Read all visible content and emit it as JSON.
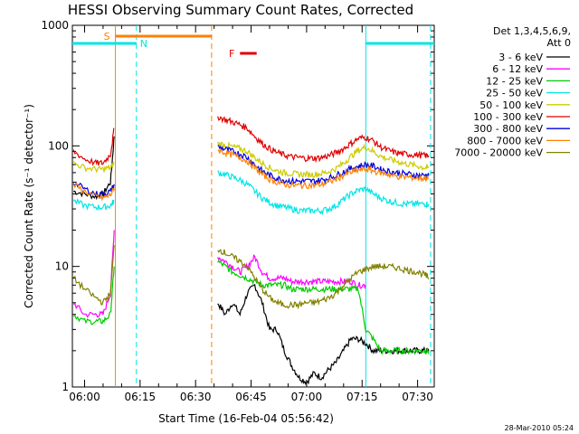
{
  "chart_data": {
    "type": "line",
    "title": "HESSI Observing Summary Count Rates, Corrected",
    "xlabel": "Start Time (16-Feb-04 05:56:42)",
    "ylabel": "Corrected Count Rate (s⁻¹ detector⁻¹)",
    "y_scale": "log",
    "ylim": [
      1,
      1000
    ],
    "xlim": [
      "05:56:42",
      "07:34:30"
    ],
    "x_ticks": [
      "06:00",
      "06:15",
      "06:30",
      "06:45",
      "07:00",
      "07:15",
      "07:30"
    ],
    "y_ticks": [
      "1",
      "10",
      "100",
      "1000"
    ],
    "legend_header": [
      "Det 1,3,4,5,6,9,",
      "Att 0"
    ],
    "legend_position": "right",
    "footer": "28-Mar-2010 05:24",
    "flag_bars": [
      {
        "label": "S",
        "color": "#ff8000",
        "start": "06:08:20",
        "end": "06:34:20"
      },
      {
        "label": "N",
        "color": "#00e5e5",
        "start": "05:56:42",
        "end": "06:14:00"
      },
      {
        "label": "N",
        "color": "#00e5e5",
        "start": "07:16:00",
        "end": "07:34:30"
      },
      {
        "label": "F",
        "color": "#e00000",
        "start": "06:42:00",
        "end": "06:46:30"
      }
    ],
    "vertical_lines": [
      {
        "time": "06:08:20",
        "color": "#ff8000",
        "style": "solid"
      },
      {
        "time": "06:14:00",
        "color": "#00e5e5",
        "style": "dashed"
      },
      {
        "time": "06:34:20",
        "color": "#ff8000",
        "style": "dashed"
      },
      {
        "time": "07:16:00",
        "color": "#00e5e5",
        "style": "solid"
      },
      {
        "time": "07:33:30",
        "color": "#00e5e5",
        "style": "dashed"
      }
    ],
    "series": [
      {
        "name": "3 - 6 keV",
        "color": "#000000",
        "segments": [
          {
            "x": [
              "05:57",
              "06:00",
              "06:03",
              "06:05",
              "06:07",
              "06:08"
            ],
            "y": [
              42,
              40,
              38,
              40,
              50,
              120
            ]
          },
          {
            "x": [
              "06:36",
              "06:38",
              "06:40",
              "06:42",
              "06:44",
              "06:46",
              "06:48",
              "06:50",
              "06:52",
              "06:54",
              "06:56",
              "06:58",
              "07:00",
              "07:02",
              "07:04",
              "07:06",
              "07:08",
              "07:10",
              "07:12",
              "07:14",
              "07:16",
              "07:18",
              "07:20",
              "07:22",
              "07:24",
              "07:26",
              "07:28",
              "07:30",
              "07:32",
              "07:33"
            ],
            "y": [
              5,
              4,
              5,
              4,
              6,
              7,
              5,
              3,
              3,
              2,
              1.5,
              1.2,
              1.1,
              1.3,
              1.2,
              1.4,
              1.6,
              2,
              2.5,
              2.5,
              2.3,
              2,
              2,
              2,
              2,
              2,
              2,
              2,
              2,
              2
            ]
          }
        ]
      },
      {
        "name": "6 - 12 keV",
        "color": "#ff00ff",
        "segments": [
          {
            "x": [
              "05:57",
              "06:00",
              "06:03",
              "06:05",
              "06:07",
              "06:08"
            ],
            "y": [
              5,
              4,
              4,
              4,
              6,
              20
            ]
          },
          {
            "x": [
              "06:36",
              "06:38",
              "06:40",
              "06:42",
              "06:44",
              "06:46",
              "06:48",
              "06:50",
              "06:52",
              "06:54",
              "06:56",
              "06:58",
              "07:00",
              "07:02",
              "07:04",
              "07:06",
              "07:08",
              "07:10",
              "07:12",
              "07:14",
              "07:16"
            ],
            "y": [
              12,
              11,
              10,
              9,
              10,
              12,
              9,
              8,
              8,
              8,
              7.5,
              7.5,
              7.5,
              7.5,
              7.5,
              7.5,
              7.5,
              7.5,
              7.5,
              7,
              7
            ]
          }
        ]
      },
      {
        "name": "12 - 25 keV",
        "color": "#00cc00",
        "segments": [
          {
            "x": [
              "05:57",
              "06:00",
              "06:03",
              "06:05",
              "06:07",
              "06:08"
            ],
            "y": [
              4,
              3.5,
              3.5,
              3.5,
              4,
              10
            ]
          },
          {
            "x": [
              "06:36",
              "06:38",
              "06:40",
              "06:42",
              "06:44",
              "06:46",
              "06:48",
              "06:50",
              "06:52",
              "06:54",
              "06:56",
              "06:58",
              "07:00",
              "07:02",
              "07:04",
              "07:06",
              "07:08",
              "07:10",
              "07:12",
              "07:14",
              "07:16",
              "07:18",
              "07:20",
              "07:22",
              "07:24",
              "07:26",
              "07:28",
              "07:30",
              "07:32",
              "07:33"
            ],
            "y": [
              11,
              10,
              9,
              8.5,
              8,
              7.5,
              7,
              7,
              7,
              7,
              6.5,
              6.5,
              6.5,
              6.5,
              6.5,
              6.5,
              6.5,
              6.5,
              6.5,
              6.5,
              3,
              2.5,
              2,
              2,
              2,
              2,
              2,
              2,
              2,
              2
            ]
          }
        ]
      },
      {
        "name": "25 - 50 keV",
        "color": "#00e5e5",
        "segments": [
          {
            "x": [
              "05:57",
              "06:00",
              "06:03",
              "06:05",
              "06:07",
              "06:08"
            ],
            "y": [
              35,
              32,
              31,
              31,
              32,
              35
            ]
          },
          {
            "x": [
              "06:36",
              "06:38",
              "06:40",
              "06:42",
              "06:44",
              "06:46",
              "06:48",
              "06:50",
              "06:52",
              "06:54",
              "06:56",
              "06:58",
              "07:00",
              "07:02",
              "07:04",
              "07:06",
              "07:08",
              "07:10",
              "07:12",
              "07:14",
              "07:16",
              "07:18",
              "07:20",
              "07:22",
              "07:24",
              "07:26",
              "07:28",
              "07:30",
              "07:32",
              "07:33"
            ],
            "y": [
              60,
              58,
              55,
              52,
              48,
              42,
              37,
              34,
              32,
              31,
              30,
              29,
              29,
              29,
              29,
              30,
              32,
              36,
              40,
              43,
              44,
              40,
              37,
              35,
              34,
              33,
              33,
              33,
              33,
              33
            ]
          }
        ]
      },
      {
        "name": "50 - 100 keV",
        "color": "#cccc00",
        "segments": [
          {
            "x": [
              "05:57",
              "06:00",
              "06:03",
              "06:05",
              "06:07",
              "06:08"
            ],
            "y": [
              72,
              66,
              64,
              64,
              66,
              72
            ]
          },
          {
            "x": [
              "06:36",
              "06:38",
              "06:40",
              "06:42",
              "06:44",
              "06:46",
              "06:48",
              "06:50",
              "06:52",
              "06:54",
              "06:56",
              "06:58",
              "07:00",
              "07:02",
              "07:04",
              "07:06",
              "07:08",
              "07:10",
              "07:12",
              "07:14",
              "07:16",
              "07:18",
              "07:20",
              "07:22",
              "07:24",
              "07:26",
              "07:28",
              "07:30",
              "07:32",
              "07:33"
            ],
            "y": [
              105,
              102,
              98,
              95,
              90,
              80,
              72,
              66,
              62,
              60,
              59,
              58,
              58,
              58,
              59,
              61,
              65,
              72,
              82,
              92,
              98,
              90,
              82,
              78,
              75,
              72,
              70,
              68,
              66,
              66
            ]
          }
        ]
      },
      {
        "name": "100 - 300 keV",
        "color": "#e00000",
        "segments": [
          {
            "x": [
              "05:57",
              "06:00",
              "06:03",
              "06:05",
              "06:07",
              "06:08"
            ],
            "y": [
              90,
              78,
              72,
              72,
              85,
              140
            ]
          },
          {
            "x": [
              "06:36",
              "06:38",
              "06:40",
              "06:42",
              "06:44",
              "06:46",
              "06:48",
              "06:50",
              "06:52",
              "06:54",
              "06:56",
              "06:58",
              "07:00",
              "07:02",
              "07:04",
              "07:06",
              "07:08",
              "07:10",
              "07:12",
              "07:14",
              "07:16",
              "07:18",
              "07:20",
              "07:22",
              "07:24",
              "07:26",
              "07:28",
              "07:30",
              "07:32",
              "07:33"
            ],
            "y": [
              175,
              165,
              158,
              150,
              140,
              120,
              105,
              95,
              88,
              84,
              81,
              80,
              79,
              79,
              80,
              83,
              88,
              95,
              105,
              115,
              118,
              110,
              98,
              92,
              88,
              86,
              85,
              84,
              83,
              83
            ]
          }
        ]
      },
      {
        "name": "300 - 800 keV",
        "color": "#0000dd",
        "segments": [
          {
            "x": [
              "05:57",
              "06:00",
              "06:03",
              "06:05",
              "06:07",
              "06:08"
            ],
            "y": [
              50,
              44,
              40,
              40,
              42,
              48
            ]
          },
          {
            "x": [
              "06:36",
              "06:38",
              "06:40",
              "06:42",
              "06:44",
              "06:46",
              "06:48",
              "06:50",
              "06:52",
              "06:54",
              "06:56",
              "06:58",
              "07:00",
              "07:02",
              "07:04",
              "07:06",
              "07:08",
              "07:10",
              "07:12",
              "07:14",
              "07:16",
              "07:18",
              "07:20",
              "07:22",
              "07:24",
              "07:26",
              "07:28",
              "07:30",
              "07:32",
              "07:33"
            ],
            "y": [
              98,
              94,
              90,
              86,
              80,
              70,
              62,
              57,
              54,
              52,
              51,
              51,
              51,
              51,
              52,
              54,
              57,
              61,
              65,
              68,
              70,
              68,
              64,
              62,
              60,
              59,
              58,
              57,
              57,
              57
            ]
          }
        ]
      },
      {
        "name": "800 - 7000 keV",
        "color": "#ff8000",
        "segments": [
          {
            "x": [
              "05:57",
              "06:00",
              "06:03",
              "06:05",
              "06:07",
              "06:08"
            ],
            "y": [
              48,
              42,
              38,
              37,
              39,
              45
            ]
          },
          {
            "x": [
              "06:36",
              "06:38",
              "06:40",
              "06:42",
              "06:44",
              "06:46",
              "06:48",
              "06:50",
              "06:52",
              "06:54",
              "06:56",
              "06:58",
              "07:00",
              "07:02",
              "07:04",
              "07:06",
              "07:08",
              "07:10",
              "07:12",
              "07:14",
              "07:16",
              "07:18",
              "07:20",
              "07:22",
              "07:24",
              "07:26",
              "07:28",
              "07:30",
              "07:32",
              "07:33"
            ],
            "y": [
              92,
              88,
              84,
              80,
              75,
              66,
              58,
              53,
              50,
              48,
              47,
              47,
              47,
              47,
              48,
              50,
              53,
              57,
              60,
              63,
              64,
              62,
              60,
              58,
              56,
              55,
              55,
              54,
              54,
              54
            ]
          }
        ]
      },
      {
        "name": "7000 - 20000 keV",
        "color": "#808000",
        "segments": [
          {
            "x": [
              "05:57",
              "06:00",
              "06:03",
              "06:05",
              "06:07",
              "06:08"
            ],
            "y": [
              8,
              6.5,
              5.5,
              5,
              6,
              15
            ]
          },
          {
            "x": [
              "06:36",
              "06:38",
              "06:40",
              "06:42",
              "06:44",
              "06:46",
              "06:48",
              "06:50",
              "06:52",
              "06:54",
              "06:56",
              "06:58",
              "07:00",
              "07:02",
              "07:04",
              "07:06",
              "07:08",
              "07:10",
              "07:12",
              "07:14",
              "07:16",
              "07:18",
              "07:20",
              "07:22",
              "07:24",
              "07:26",
              "07:28",
              "07:30",
              "07:32",
              "07:33"
            ],
            "y": [
              14,
              13,
              12,
              11,
              10,
              8,
              6.5,
              5.5,
              5,
              4.8,
              4.8,
              4.8,
              5,
              5,
              5.2,
              5.5,
              6,
              7,
              8,
              9,
              9.5,
              10,
              10,
              10,
              9.8,
              9.5,
              9.2,
              9,
              8.5,
              8
            ]
          }
        ]
      }
    ]
  }
}
